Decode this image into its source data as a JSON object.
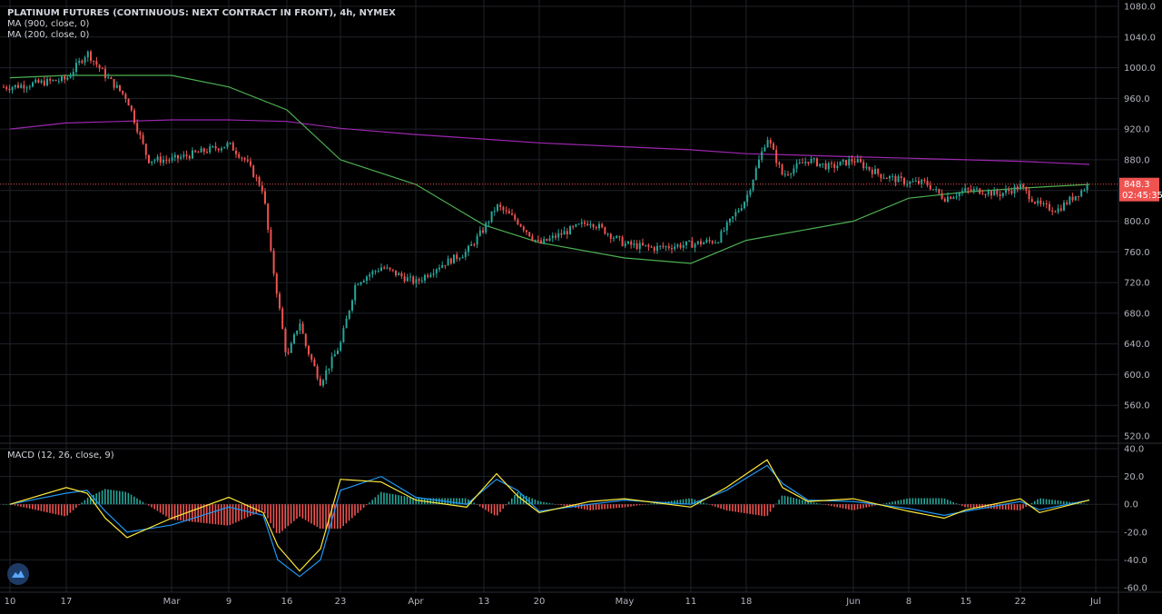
{
  "legend": {
    "title": "PLATINUM FUTURES (CONTINUOUS: NEXT CONTRACT IN FRONT), 4h, NYMEX",
    "ma900": "MA (900, close, 0)",
    "ma200": "MA (200, close, 0)",
    "macd": "MACD (12, 26, close, 9)"
  },
  "colors": {
    "background": "#000000",
    "grid": "#1f2229",
    "up": "#26a69a",
    "down": "#ef5350",
    "ma900": "#9c27b0",
    "ma200": "#4caf50",
    "macd_line": "#2196f3",
    "signal_line": "#ffeb3b",
    "price_label": "#ef5350"
  },
  "price_label": {
    "price": "848.3",
    "countdown": "02:45:35"
  },
  "chart_data": [
    {
      "type": "candlestick",
      "title": "PLATINUM FUTURES (CONTINUOUS: NEXT CONTRACT IN FRONT), 4h, NYMEX",
      "x_ticks": [
        "10",
        "17",
        "Mar",
        "9",
        "16",
        "23",
        "Apr",
        "13",
        "20",
        "May",
        "11",
        "18",
        "Jun",
        "8",
        "15",
        "22",
        "Jul"
      ],
      "y_ticks": [
        520,
        560,
        600,
        640,
        680,
        720,
        760,
        800,
        840,
        880,
        920,
        960,
        1000,
        1040,
        1080
      ],
      "ylim": [
        515,
        1080
      ],
      "grid": true,
      "close_path": [
        [
          "10",
          975
        ],
        [
          "17",
          985
        ],
        [
          "19",
          1020
        ],
        [
          "21",
          990
        ],
        [
          "24",
          960
        ],
        [
          "26",
          880
        ],
        [
          "Mar",
          880
        ],
        [
          "9",
          900
        ],
        [
          "11",
          880
        ],
        [
          "13",
          840
        ],
        [
          "14",
          760
        ],
        [
          "15",
          700
        ],
        [
          "16",
          620
        ],
        [
          "17",
          670
        ],
        [
          "18",
          640
        ],
        [
          "20",
          590
        ],
        [
          "23",
          640
        ],
        [
          "25",
          720
        ],
        [
          "27",
          740
        ],
        [
          "Apr",
          720
        ],
        [
          "6",
          740
        ],
        [
          "10",
          760
        ],
        [
          "13",
          790
        ],
        [
          "14",
          820
        ],
        [
          "17",
          800
        ],
        [
          "20",
          770
        ],
        [
          "22",
          780
        ],
        [
          "27",
          800
        ],
        [
          "May",
          770
        ],
        [
          "6",
          765
        ],
        [
          "11",
          770
        ],
        [
          "15",
          775
        ],
        [
          "18",
          830
        ],
        [
          "20",
          910
        ],
        [
          "22",
          860
        ],
        [
          "26",
          880
        ],
        [
          "29",
          870
        ],
        [
          "Jun",
          880
        ],
        [
          "4",
          860
        ],
        [
          "8",
          850
        ],
        [
          "10",
          850
        ],
        [
          "12",
          830
        ],
        [
          "15",
          840
        ],
        [
          "17",
          840
        ],
        [
          "19",
          835
        ],
        [
          "22",
          845
        ],
        [
          "24",
          820
        ],
        [
          "26",
          815
        ],
        [
          "29",
          848.3
        ]
      ],
      "series": [
        {
          "name": "MA (900, close, 0)",
          "points": [
            [
              "10",
              920
            ],
            [
              "17",
              928
            ],
            [
              "Mar",
              932
            ],
            [
              "9",
              932
            ],
            [
              "16",
              930
            ],
            [
              "23",
              921
            ],
            [
              "Apr",
              913
            ],
            [
              "13",
              907
            ],
            [
              "20",
              902
            ],
            [
              "May",
              897
            ],
            [
              "11",
              893
            ],
            [
              "18",
              888
            ],
            [
              "Jun",
              884
            ],
            [
              "8",
              882
            ],
            [
              "15",
              880
            ],
            [
              "22",
              878
            ],
            [
              "29",
              874
            ]
          ]
        },
        {
          "name": "MA (200, close, 0)",
          "points": [
            [
              "10",
              987
            ],
            [
              "17",
              990
            ],
            [
              "Mar",
              990
            ],
            [
              "9",
              975
            ],
            [
              "16",
              945
            ],
            [
              "23",
              880
            ],
            [
              "Apr",
              848
            ],
            [
              "13",
              795
            ],
            [
              "20",
              772
            ],
            [
              "May",
              752
            ],
            [
              "11",
              745
            ],
            [
              "18",
              775
            ],
            [
              "Jun",
              800
            ],
            [
              "8",
              830
            ],
            [
              "15",
              838
            ],
            [
              "22",
              843
            ],
            [
              "29",
              848
            ]
          ]
        }
      ],
      "last_price": 848.3
    },
    {
      "type": "macd",
      "title": "MACD (12, 26, close, 9)",
      "y_ticks": [
        40,
        20,
        0,
        -20,
        -40,
        -60
      ],
      "ylim": [
        -60,
        40
      ],
      "series": [
        {
          "name": "MACD",
          "points": [
            [
              "10",
              0
            ],
            [
              "17",
              8
            ],
            [
              "19",
              10
            ],
            [
              "21",
              -5
            ],
            [
              "24",
              -20
            ],
            [
              "Mar",
              -15
            ],
            [
              "9",
              -2
            ],
            [
              "13",
              -8
            ],
            [
              "15",
              -40
            ],
            [
              "17",
              -52
            ],
            [
              "20",
              -40
            ],
            [
              "23",
              10
            ],
            [
              "27",
              20
            ],
            [
              "Apr",
              5
            ],
            [
              "10",
              0
            ],
            [
              "14",
              18
            ],
            [
              "17",
              10
            ],
            [
              "20",
              -5
            ],
            [
              "27",
              0
            ],
            [
              "May",
              3
            ],
            [
              "11",
              0
            ],
            [
              "16",
              10
            ],
            [
              "20",
              28
            ],
            [
              "22",
              15
            ],
            [
              "26",
              3
            ],
            [
              "Jun",
              2
            ],
            [
              "8",
              -3
            ],
            [
              "12",
              -8
            ],
            [
              "15",
              -5
            ],
            [
              "22",
              2
            ],
            [
              "24",
              -4
            ],
            [
              "29",
              3
            ]
          ]
        },
        {
          "name": "Signal",
          "points": [
            [
              "10",
              0
            ],
            [
              "17",
              12
            ],
            [
              "19",
              8
            ],
            [
              "21",
              -10
            ],
            [
              "24",
              -24
            ],
            [
              "Mar",
              -10
            ],
            [
              "9",
              5
            ],
            [
              "13",
              -6
            ],
            [
              "15",
              -30
            ],
            [
              "17",
              -48
            ],
            [
              "20",
              -32
            ],
            [
              "23",
              18
            ],
            [
              "27",
              16
            ],
            [
              "Apr",
              3
            ],
            [
              "10",
              -2
            ],
            [
              "14",
              22
            ],
            [
              "17",
              6
            ],
            [
              "20",
              -6
            ],
            [
              "27",
              2
            ],
            [
              "May",
              4
            ],
            [
              "11",
              -2
            ],
            [
              "16",
              12
            ],
            [
              "20",
              32
            ],
            [
              "22",
              12
            ],
            [
              "26",
              2
            ],
            [
              "Jun",
              4
            ],
            [
              "8",
              -5
            ],
            [
              "12",
              -10
            ],
            [
              "15",
              -4
            ],
            [
              "22",
              4
            ],
            [
              "24",
              -6
            ],
            [
              "29",
              3
            ]
          ]
        }
      ]
    }
  ]
}
